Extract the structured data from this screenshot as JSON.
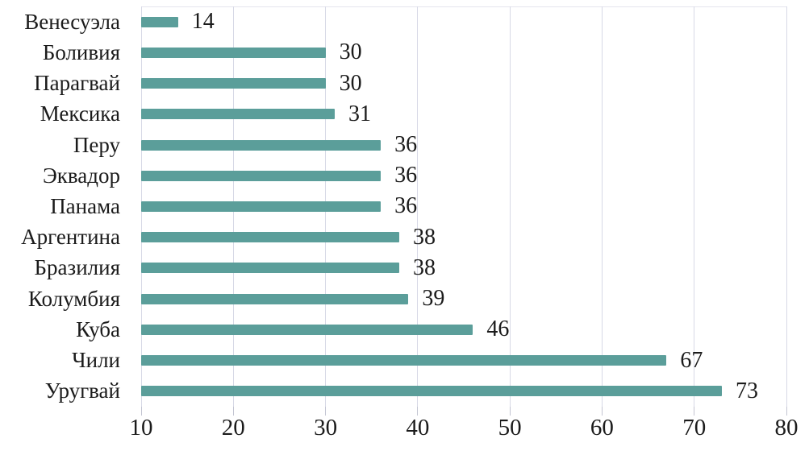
{
  "chart_data": {
    "type": "bar",
    "orientation": "horizontal",
    "title": "",
    "categories": [
      "Венесуэла",
      "Боливия",
      "Парагвай",
      "Мексика",
      "Перу",
      "Эквадор",
      "Панама",
      "Аргентина",
      "Бразилия",
      "Колумбия",
      "Куба",
      "Чили",
      "Уругвай"
    ],
    "values": [
      14,
      30,
      30,
      31,
      36,
      36,
      36,
      38,
      38,
      39,
      46,
      67,
      73
    ],
    "value_labels": [
      "14",
      "30",
      "30",
      "31",
      "36",
      "36",
      "36",
      "38",
      "38",
      "39",
      "46",
      "67",
      "73"
    ],
    "xlabel": "",
    "ylabel": "",
    "xlim": [
      10,
      80
    ],
    "x_ticks": [
      10,
      20,
      30,
      40,
      50,
      60,
      70,
      80
    ],
    "x_tick_labels": [
      "10",
      "20",
      "30",
      "40",
      "50",
      "60",
      "70",
      "80"
    ],
    "grid": "vertical-only",
    "legend": "none",
    "value_labels_shown": true
  },
  "colors": {
    "bar": "#5b9e9a",
    "grid": "#d7d9e6",
    "tick": "#c3c5d2",
    "text": "#1b1b1b",
    "background": "#ffffff"
  }
}
